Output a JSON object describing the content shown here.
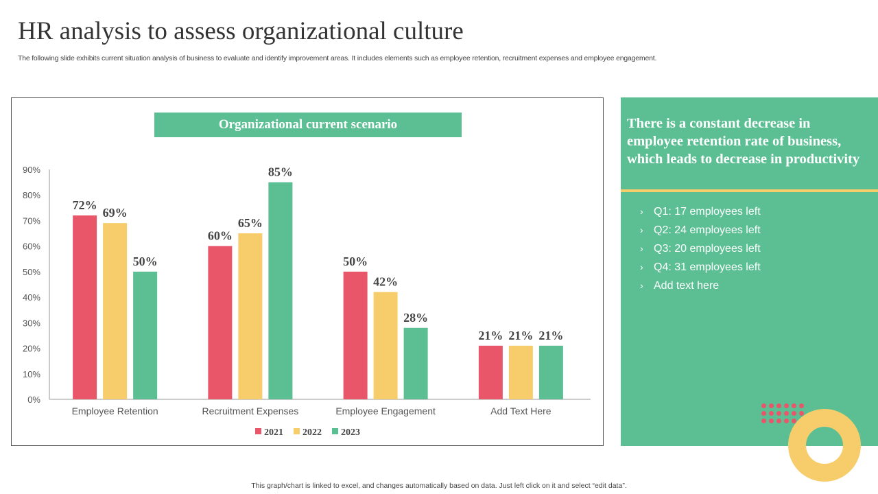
{
  "title": "HR analysis to assess organizational culture",
  "subtitle": "The following slide exhibits current situation analysis of business to evaluate and identify improvement areas. It includes elements such as employee retention, recruitment expenses and employee engagement.",
  "chart_data": {
    "type": "bar",
    "title": "Organizational current scenario",
    "categories": [
      "Employee Retention",
      "Recruitment Expenses",
      "Employee Engagement",
      "Add Text Here"
    ],
    "series": [
      {
        "name": "2021",
        "color": "#e9566a",
        "values": [
          72,
          60,
          50,
          21
        ]
      },
      {
        "name": "2022",
        "color": "#f7cd6b",
        "values": [
          69,
          65,
          42,
          21
        ]
      },
      {
        "name": "2023",
        "color": "#5bbf93",
        "values": [
          50,
          85,
          28,
          21
        ]
      }
    ],
    "ylim": [
      0,
      90
    ],
    "yticks": [
      "0%",
      "10%",
      "20%",
      "30%",
      "40%",
      "50%",
      "60%",
      "70%",
      "80%",
      "90%"
    ],
    "value_suffix": "%",
    "legend": "bottom",
    "grid": false
  },
  "panel": {
    "heading": "There is a constant decrease in employee retention rate of business, which leads to decrease in productivity",
    "bullet_icon": "chevron-right-icon",
    "items": [
      "Q1: 17 employees left",
      "Q2: 24 employees left",
      "Q3: 20 employees left",
      "Q4: 31 employees left",
      "Add text here"
    ]
  },
  "footer": "This graph/chart is linked to excel, and changes automatically based on data. Just left click on it and select “edit data”."
}
